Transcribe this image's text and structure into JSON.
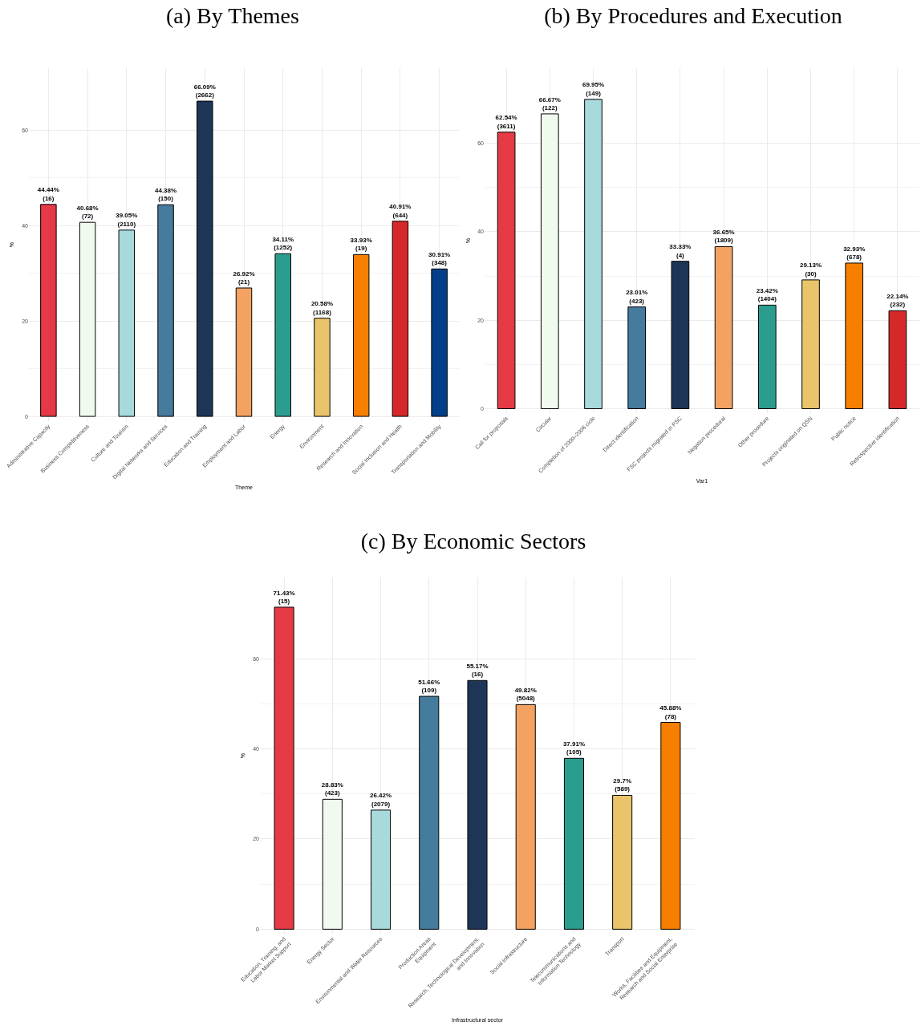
{
  "chart_data": [
    {
      "type": "bar",
      "title": "(a) By Themes",
      "xlabel": "Theme",
      "ylabel": "%",
      "categories": [
        "Administrative Capacity",
        "Business Competitiveness",
        "Culture and Tourism",
        "Digital Networks and Services",
        "Education and Training",
        "Employment and Labor",
        "Energy",
        "Environment",
        "Research and Innovation",
        "Social Inclusion and Health",
        "Transportation and Mobility"
      ],
      "values": [
        44.44,
        40.68,
        39.05,
        44.38,
        66.09,
        26.92,
        34.11,
        20.58,
        33.93,
        40.91,
        30.91
      ],
      "colors": [
        "#e63946",
        "#f1faee",
        "#a8dadc",
        "#457b9d",
        "#1d3557",
        "#f4a261",
        "#2a9d8f",
        "#e9c46a",
        "#f77f00",
        "#d62828",
        "#023e8a"
      ],
      "value_labels": [
        "44.44%\n(16)",
        "40.68%\n(72)",
        "39.05%\n(2110)",
        "44.38%\n(150)",
        "66.09%\n(2662)",
        "26.92%\n(21)",
        "34.11%\n(1252)",
        "20.58%\n(1168)",
        "33.93%\n(19)",
        "40.91%\n(644)",
        "30.91%\n(348)"
      ],
      "ylim": [
        -1,
        73
      ],
      "yticks": [
        0,
        20,
        40,
        60
      ],
      "grid": true
    },
    {
      "type": "bar",
      "title": "(b) By Procedures and Execution",
      "xlabel": "Var1",
      "ylabel": "%",
      "categories": [
        "Call for proposals",
        "Circular",
        "Completion of 2000–2006 cicle",
        "Direct identification",
        "FSC projects migrated in PSC",
        "Negation procedural",
        "Other procedure",
        "Projects originated on QSN",
        "Public notice",
        "Retrospective identification"
      ],
      "values": [
        62.54,
        66.67,
        69.95,
        23.01,
        33.33,
        36.65,
        23.42,
        29.13,
        32.93,
        22.14
      ],
      "colors": [
        "#e63946",
        "#f1faee",
        "#a8dadc",
        "#457b9d",
        "#1d3557",
        "#f4a261",
        "#2a9d8f",
        "#e9c46a",
        "#f77f00",
        "#d62828"
      ],
      "value_labels": [
        "62.54%\n(3611)",
        "66.67%\n(122)",
        "69.95%\n(149)",
        "23.01%\n(423)",
        "33.33%\n(4)",
        "36.65%\n(1809)",
        "23.42%\n(1404)",
        "29.13%\n(30)",
        "32.93%\n(678)",
        "22.14%\n(232)"
      ],
      "ylim": [
        -1,
        77
      ],
      "yticks": [
        0,
        20,
        40,
        60
      ],
      "grid": true
    },
    {
      "type": "bar",
      "title": "(c) By Economic Sectors",
      "xlabel": "Infrastructural sector",
      "ylabel": "%",
      "categories": [
        "Education, Training, and\nLabor Market Support",
        "Energy Sector",
        "Environmental and Water Resources",
        "Production Areas\nEquipment",
        "Research, Technological Development,\nand Innovation",
        "Social Infrastructure",
        "Telecommunications and\nInformation Technology",
        "Transport",
        "Works, Facilities and Equipment,\nResearch and Social Enterprise"
      ],
      "values": [
        71.43,
        28.83,
        26.42,
        51.66,
        55.17,
        49.82,
        37.91,
        29.7,
        45.88
      ],
      "colors": [
        "#e63946",
        "#f1faee",
        "#a8dadc",
        "#457b9d",
        "#1d3557",
        "#f4a261",
        "#2a9d8f",
        "#e9c46a",
        "#f77f00"
      ],
      "value_labels": [
        "71.43%\n(15)",
        "28.83%\n(423)",
        "26.42%\n(2079)",
        "51.66%\n(109)",
        "55.17%\n(16)",
        "49.82%\n(5048)",
        "37.91%\n(105)",
        "29.7%\n(589)",
        "45.88%\n(78)"
      ],
      "ylim": [
        -1,
        78
      ],
      "yticks": [
        0,
        20,
        40,
        60
      ],
      "grid": true
    }
  ]
}
